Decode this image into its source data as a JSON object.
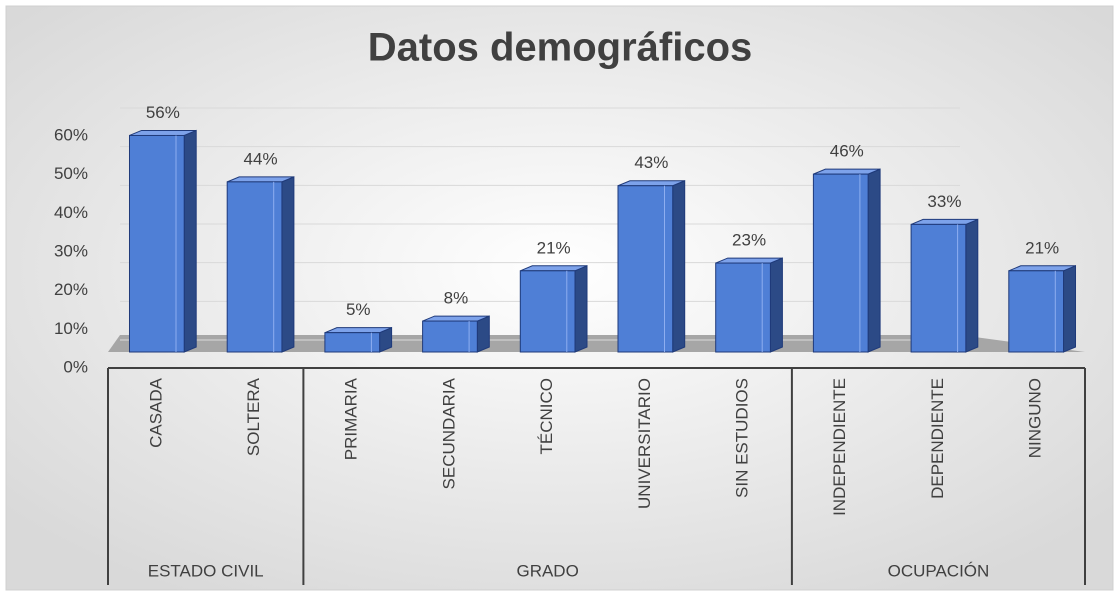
{
  "chart_data": {
    "type": "bar3d",
    "title": "Datos demográficos",
    "groups": [
      {
        "name": "ESTADO CIVIL",
        "categories": [
          "CASADA",
          "SOLTERA"
        ],
        "values": [
          56,
          44
        ],
        "value_labels": [
          "56%",
          "44%"
        ]
      },
      {
        "name": "GRADO",
        "categories": [
          "PRIMARIA",
          "SECUNDARIA",
          "TÉCNICO",
          "UNIVERSITARIO",
          "SIN ESTUDIOS"
        ],
        "values": [
          5,
          8,
          21,
          43,
          23
        ],
        "value_labels": [
          "5%",
          "8%",
          "21%",
          "43%",
          "23%"
        ]
      },
      {
        "name": "OCUPACIÓN",
        "categories": [
          "INDEPENDIENTE",
          "DEPENDIENTE",
          "NINGUNO"
        ],
        "values": [
          46,
          33,
          21
        ],
        "value_labels": [
          "46%",
          "33%",
          "21%"
        ]
      }
    ],
    "color": "#4f7fd6",
    "ylim": [
      0,
      60
    ],
    "yticks": [
      {
        "value": 0,
        "label": "0%"
      },
      {
        "value": 10,
        "label": "10%"
      },
      {
        "value": 20,
        "label": "20%"
      },
      {
        "value": 30,
        "label": "30%"
      },
      {
        "value": 40,
        "label": "40%"
      },
      {
        "value": 50,
        "label": "50%"
      },
      {
        "value": 60,
        "label": "60%"
      }
    ],
    "grid": true
  }
}
